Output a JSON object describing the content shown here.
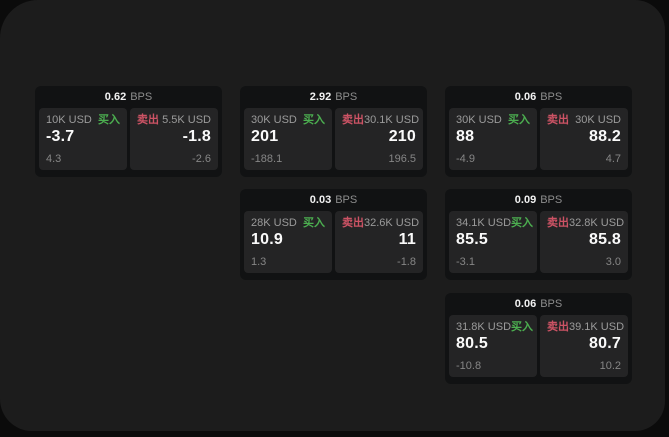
{
  "labels": {
    "bps": "BPS",
    "buy": "买入",
    "sell": "卖出"
  },
  "colors": {
    "buy_green": "#4caf50",
    "sell_red": "#cd5365",
    "panel_bg": "#1c1c1c",
    "card_bg": "#111213",
    "tile_bg": "#242425"
  },
  "cards": [
    {
      "bps": "0.62",
      "buy_notional": "10K USD",
      "buy_price": "-3.7",
      "buy_sub": "4.3",
      "sell_notional": "5.5K USD",
      "sell_price": "-1.8",
      "sell_sub": "-2.6"
    },
    {
      "bps": "2.92",
      "buy_notional": "30K USD",
      "buy_price": "201",
      "buy_sub": "-188.1",
      "sell_notional": "30.1K USD",
      "sell_price": "210",
      "sell_sub": "196.5"
    },
    {
      "bps": "0.06",
      "buy_notional": "30K USD",
      "buy_price": "88",
      "buy_sub": "-4.9",
      "sell_notional": "30K USD",
      "sell_price": "88.2",
      "sell_sub": "4.7"
    },
    {
      "bps": "0.03",
      "buy_notional": "28K USD",
      "buy_price": "10.9",
      "buy_sub": "1.3",
      "sell_notional": "32.6K USD",
      "sell_price": "11",
      "sell_sub": "-1.8"
    },
    {
      "bps": "0.09",
      "buy_notional": "34.1K USD",
      "buy_price": "85.5",
      "buy_sub": "-3.1",
      "sell_notional": "32.8K USD",
      "sell_price": "85.8",
      "sell_sub": "3.0"
    },
    {
      "bps": "0.06",
      "buy_notional": "31.8K USD",
      "buy_price": "80.5",
      "buy_sub": "-10.8",
      "sell_notional": "39.1K USD",
      "sell_price": "80.7",
      "sell_sub": "10.2"
    }
  ]
}
